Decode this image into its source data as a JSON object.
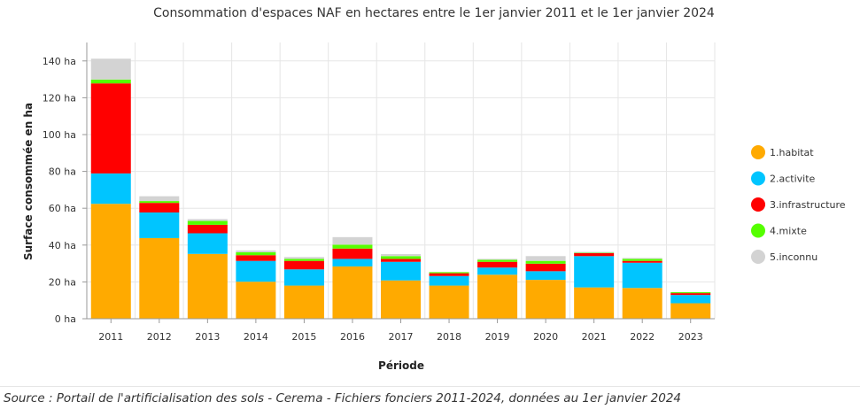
{
  "chart_data": {
    "type": "bar",
    "stacked": true,
    "title": "Consommation d'espaces NAF en hectares entre le 1er janvier 2011 et le 1er janvier 2024",
    "xlabel": "Période",
    "ylabel": "Surface consommée en ha",
    "ylim": [
      0,
      150
    ],
    "yticks": [
      0,
      20,
      40,
      60,
      80,
      100,
      120,
      140
    ],
    "ytick_suffix": " ha",
    "grid": true,
    "legend_position": "right",
    "categories": [
      "2011",
      "2012",
      "2013",
      "2014",
      "2015",
      "2016",
      "2017",
      "2018",
      "2019",
      "2020",
      "2021",
      "2022",
      "2023"
    ],
    "series": [
      {
        "name": "1.habitat",
        "color": "#FFAA00",
        "values": [
          62.4,
          43.8,
          35.2,
          20.1,
          18.0,
          28.4,
          20.8,
          18.0,
          23.9,
          21.1,
          17.0,
          16.7,
          8.4
        ]
      },
      {
        "name": "2.activite",
        "color": "#00C5FF",
        "values": [
          16.5,
          13.9,
          11.2,
          11.3,
          8.8,
          4.1,
          10.1,
          5.2,
          3.9,
          4.7,
          17.0,
          13.7,
          4.5
        ]
      },
      {
        "name": "3.infrastructure",
        "color": "#FF0000",
        "values": [
          48.9,
          5.2,
          4.6,
          3.1,
          4.6,
          5.6,
          1.6,
          1.5,
          3.1,
          4.1,
          1.6,
          1.0,
          1.0
        ]
      },
      {
        "name": "4.mixte",
        "color": "#55FF00",
        "values": [
          2.1,
          1.0,
          2.1,
          1.6,
          1.1,
          2.1,
          1.5,
          0.6,
          1.1,
          1.5,
          0.2,
          1.1,
          0.5
        ]
      },
      {
        "name": "5.inconnu",
        "color": "#D3D3D3",
        "values": [
          11.3,
          2.6,
          1.0,
          1.0,
          1.0,
          4.1,
          1.1,
          0.0,
          0.5,
          2.6,
          0.5,
          0.5,
          0.0
        ]
      }
    ]
  },
  "source": "Source : Portail de l'artificialisation des sols - Cerema - Fichiers fonciers 2011-2024, données au 1er janvier 2024"
}
